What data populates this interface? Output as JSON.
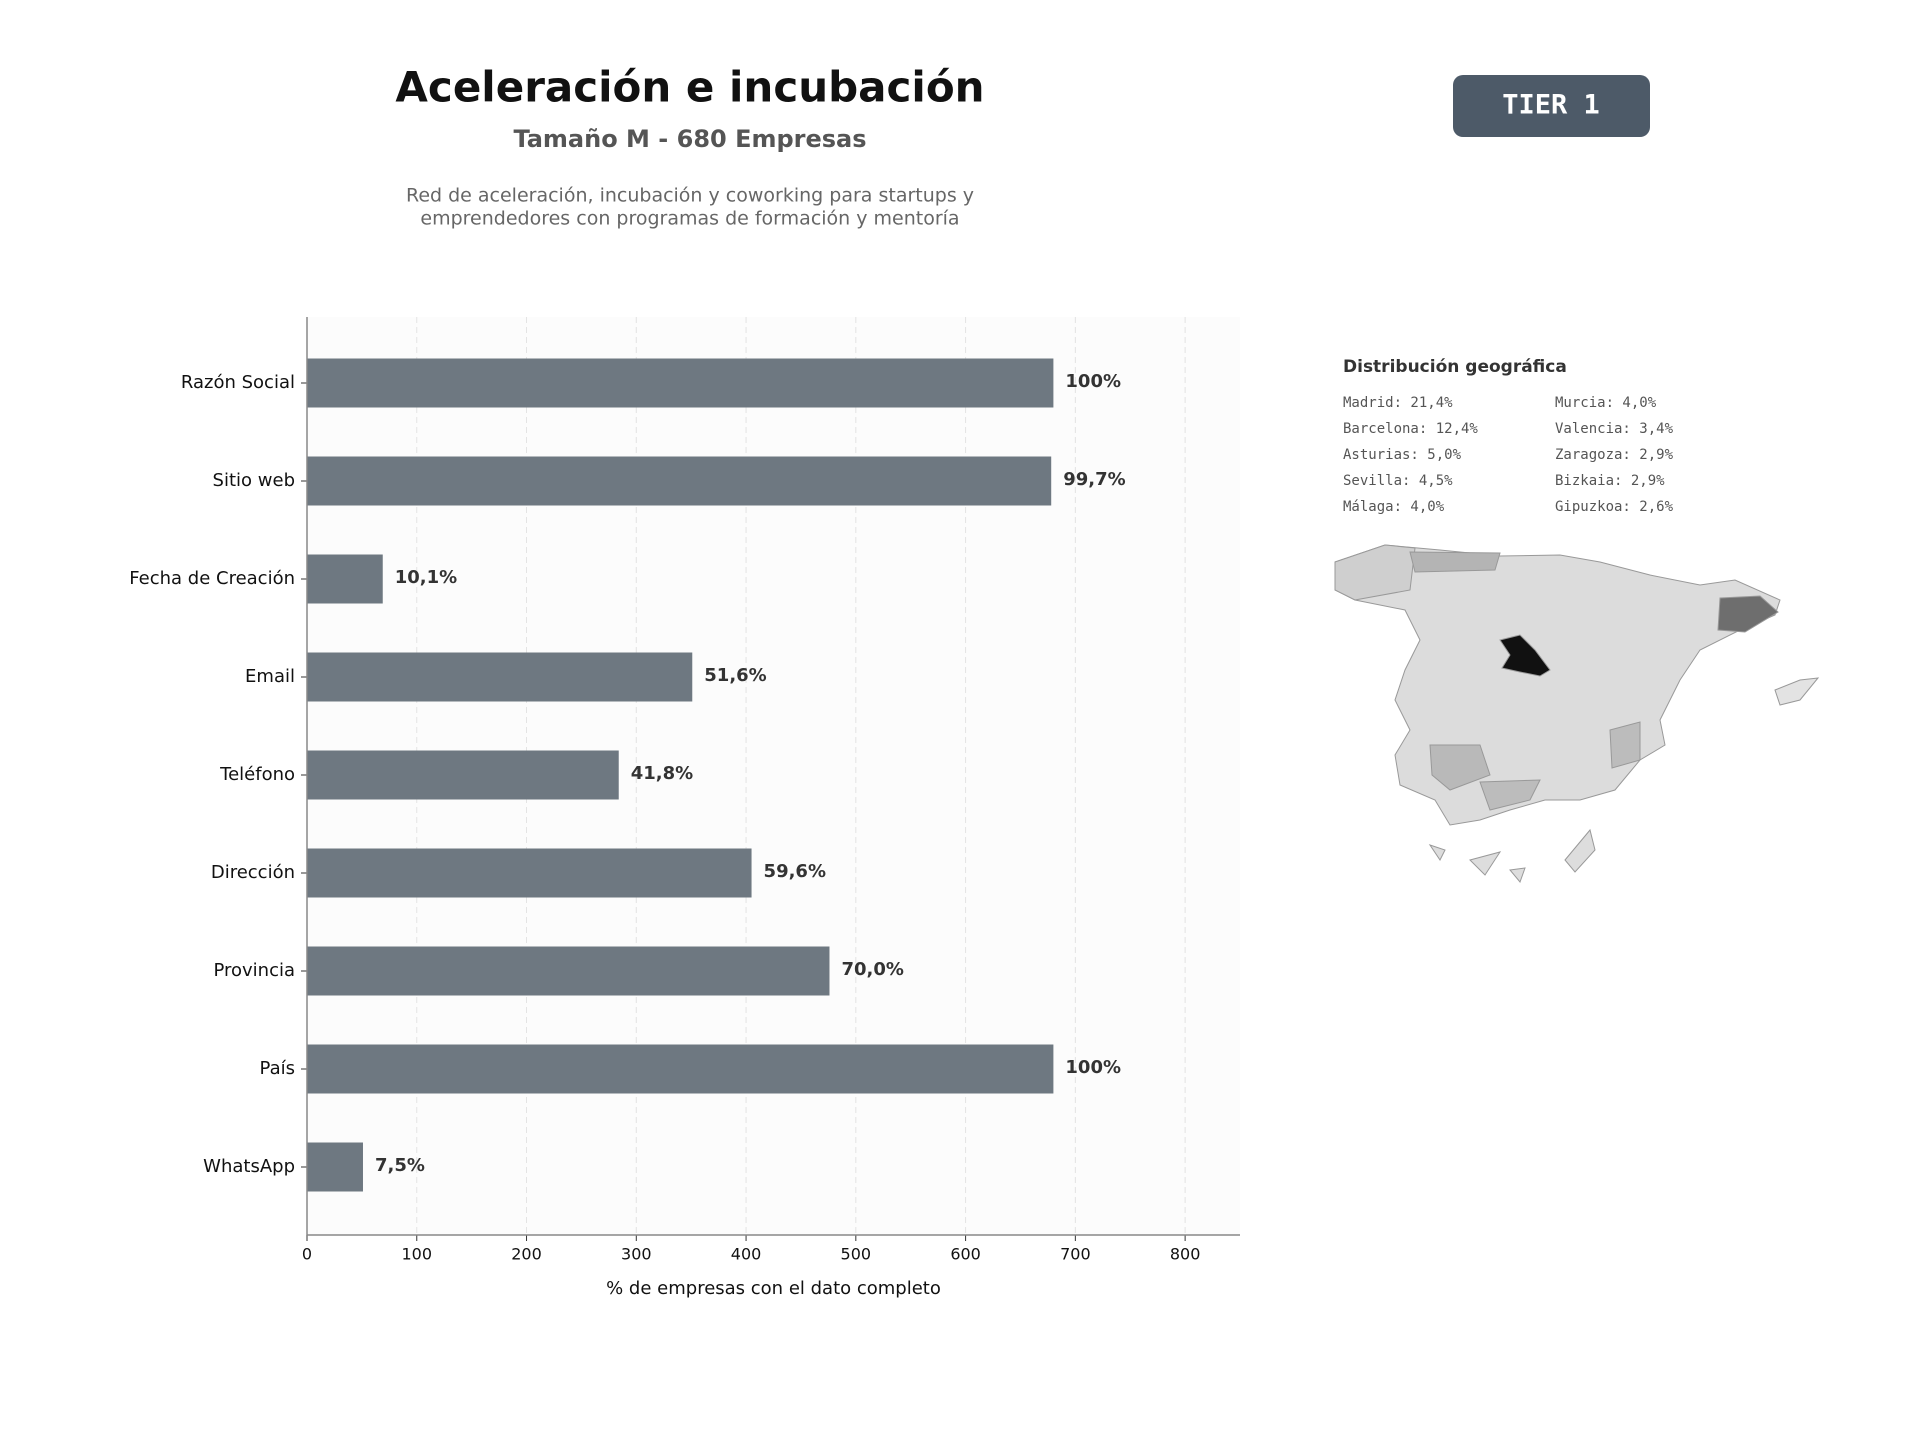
{
  "header": {
    "title": "Aceleración e incubación",
    "subtitle": "Tamaño M - 680 Empresas",
    "description": [
      "Red de aceleración, incubación y coworking para startups y",
      "emprendedores con programas de formación y mentoría"
    ],
    "badge": "TIER 1"
  },
  "geo": {
    "title": "Distribución geográfica",
    "items": [
      "Madrid: 21,4%",
      "Barcelona: 12,4%",
      "Asturias: 5,0%",
      "Sevilla: 4,5%",
      "Málaga: 4,0%",
      "Murcia: 4,0%",
      "Valencia: 3,4%",
      "Zaragoza: 2,9%",
      "Bizkaia: 2,9%",
      "Gipuzkoa: 2,6%"
    ]
  },
  "chart_data": {
    "type": "hbar",
    "xlabel": "% de empresas con el dato completo",
    "categories": [
      "Razón Social",
      "Sitio web",
      "Fecha de Creación",
      "Email",
      "Teléfono",
      "Dirección",
      "Provincia",
      "País",
      "WhatsApp"
    ],
    "values": [
      680,
      678,
      69,
      351,
      284,
      405,
      476,
      680,
      51
    ],
    "value_labels": [
      "100%",
      "99,7%",
      "10,1%",
      "51,6%",
      "41,8%",
      "59,6%",
      "70,0%",
      "100%",
      "7,5%"
    ],
    "color": "#6e7881",
    "xlim": [
      0,
      850
    ],
    "xticks": [
      0,
      100,
      200,
      300,
      400,
      500,
      600,
      700,
      800
    ],
    "grid": true
  }
}
